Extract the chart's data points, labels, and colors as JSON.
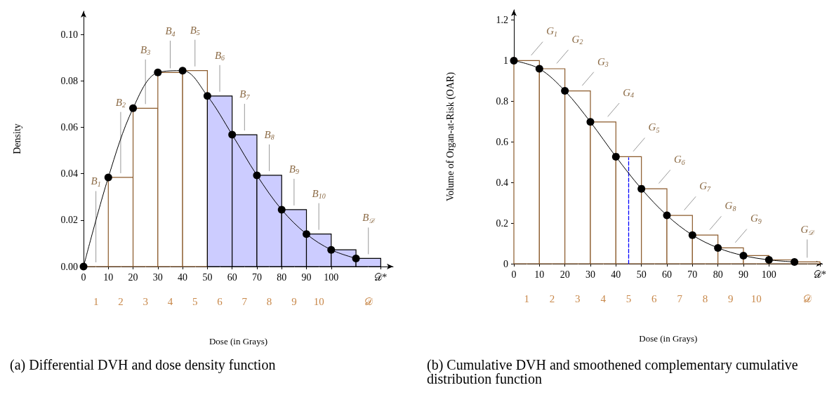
{
  "chart_data": [
    {
      "type": "histogram",
      "xlabel": "Dose (in Grays)",
      "ylabel": "Density",
      "bins": [
        0,
        10,
        20,
        30,
        40,
        50,
        60,
        70,
        80,
        90,
        100,
        110,
        120
      ],
      "categories": [
        "1",
        "2",
        "3",
        "4",
        "5",
        "6",
        "7",
        "8",
        "9",
        "10",
        null,
        "𝒟"
      ],
      "xlim": [
        0,
        125
      ],
      "xticks": [
        0,
        10,
        20,
        30,
        40,
        50,
        60,
        70,
        80,
        90,
        100,
        {
          "value": 120,
          "label": "𝒟*"
        }
      ],
      "ylim": [
        0,
        0.11
      ],
      "yticks": [
        {
          "value": 0,
          "label": "0.00"
        },
        {
          "value": 0.02,
          "label": "0.02"
        },
        {
          "value": 0.04,
          "label": "0.04"
        },
        {
          "value": 0.06,
          "label": "0.06"
        },
        {
          "value": 0.08,
          "label": "0.08"
        },
        {
          "value": 0.1,
          "label": "0.10"
        }
      ],
      "series": [
        {
          "values": [
            0,
            0.0384,
            0.0682,
            0.0836,
            0.0844,
            0.0735,
            0.0568,
            0.0393,
            0.0245,
            0.014,
            0.0072,
            0.0035
          ],
          "colors": [
            "#8b5a2b",
            "#ffffff",
            "#ffffff",
            "#ffffff",
            "#ffffff",
            "#ccccff",
            "#ccccff",
            "#ccccff",
            "#ccccff",
            "#ccccff",
            "#ccccff",
            "#ccccff"
          ]
        },
        {
          "type": "line",
          "x": [
            0,
            10,
            20,
            30,
            40,
            50,
            60,
            70,
            80,
            90,
            100,
            110
          ],
          "values": [
            0,
            0.0384,
            0.0682,
            0.0836,
            0.0844,
            0.0735,
            0.0568,
            0.0393,
            0.0245,
            0.014,
            0.0072,
            0.0035
          ],
          "color": "#000000",
          "marker": "circle",
          "line_style": "solid"
        }
      ],
      "annotations": [
        {
          "text": "B$_{1}$",
          "x": 5,
          "y": 0
        },
        {
          "text": "B$_{2}$",
          "x": 15,
          "y": 0.0384
        },
        {
          "text": "B$_{3}$",
          "x": 25,
          "y": 0.0682
        },
        {
          "text": "B$_{4}$",
          "x": 35,
          "y": 0.0836
        },
        {
          "text": "B$_{5}$",
          "x": 45,
          "y": 0.0844
        },
        {
          "text": "B$_{6}$",
          "x": 55,
          "y": 0.0735
        },
        {
          "text": "B$_{7}$",
          "x": 65,
          "y": 0.0568
        },
        {
          "text": "B$_{8}$",
          "x": 75,
          "y": 0.0393
        },
        {
          "text": "B$_{9}$",
          "x": 85,
          "y": 0.0245
        },
        {
          "text": "B$_{10}$",
          "x": 95,
          "y": 0.014
        },
        {
          "text": "B$_{𝒟}$",
          "x": 115,
          "y": 0.0035
        },
        "(a) Differential DVH and dose density function"
      ]
    },
    {
      "type": "histogram",
      "xlabel": "Dose (in Grays)",
      "ylabel": "Volume of Organ-at-Risk (OAR)",
      "bins": [
        0,
        10,
        20,
        30,
        40,
        50,
        60,
        70,
        80,
        90,
        100,
        110,
        120
      ],
      "categories": [
        "1",
        "2",
        "3",
        "4",
        "5",
        "6",
        "7",
        "8",
        "9",
        "10",
        null,
        "𝒟"
      ],
      "xlim": [
        0,
        121
      ],
      "xticks": [
        0,
        10,
        20,
        30,
        40,
        50,
        60,
        70,
        80,
        90,
        100,
        {
          "value": 120,
          "label": "𝒟*"
        }
      ],
      "ylim": [
        0,
        1.25
      ],
      "yticks": [
        0,
        0.2,
        0.4,
        0.6,
        0.8,
        1,
        1.2
      ],
      "series": [
        {
          "values": [
            1,
            0.96,
            0.851,
            0.698,
            0.527,
            0.369,
            0.238,
            0.141,
            0.078,
            0.04,
            0.019,
            0.009
          ],
          "colors": [
            "#ffffff",
            "#ffffff",
            "#ffffff",
            "#ffffff",
            "#ffffff",
            "#ffffff",
            "#ffffff",
            "#ffffff",
            "#ffffff",
            "#ffffff",
            "#ffffff",
            "#ffffff"
          ]
        },
        {
          "type": "line",
          "x": [
            45,
            45
          ],
          "values": [
            0,
            0.522
          ],
          "color": "#0000ff",
          "marker": "none",
          "line_style": "dashed"
        },
        {
          "type": "line",
          "x": [
            0,
            10,
            20,
            30,
            40,
            50,
            60,
            70,
            80,
            90,
            100,
            110
          ],
          "values": [
            1,
            0.96,
            0.851,
            0.698,
            0.527,
            0.369,
            0.238,
            0.141,
            0.078,
            0.04,
            0.019,
            0.009
          ],
          "color": "#000000",
          "marker": "circle",
          "line_style": "solid"
        }
      ],
      "annotations": [
        {
          "text": "G$_{1}$",
          "x": 5,
          "y": 1
        },
        {
          "text": "G$_{2}$",
          "x": 15,
          "y": 0.96
        },
        {
          "text": "G$_{3}$",
          "x": 25,
          "y": 0.851
        },
        {
          "text": "G$_{4}$",
          "x": 35,
          "y": 0.698
        },
        {
          "text": "G$_{5}$",
          "x": 45,
          "y": 0.527
        },
        {
          "text": "G$_{6}$",
          "x": 55,
          "y": 0.369
        },
        {
          "text": "G$_{7}$",
          "x": 65,
          "y": 0.238
        },
        {
          "text": "G$_{8}$",
          "x": 75,
          "y": 0.141
        },
        {
          "text": "G$_{9}$",
          "x": 85,
          "y": 0.078
        },
        {
          "text": "G$_{𝒟}$",
          "x": 115,
          "y": 0.009
        },
        "(b) Cumulative DVH and smoothened complementary cumulative distribution function"
      ]
    }
  ]
}
